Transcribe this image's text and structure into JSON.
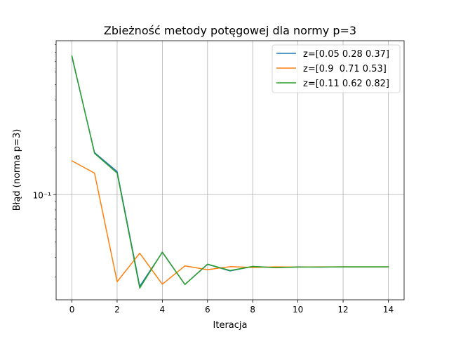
{
  "chart_data": {
    "type": "line",
    "title": "Zbieżność metody potęgowej dla normy p=3",
    "xlabel": "Iteracja",
    "ylabel": "Błąd (norma p=3)",
    "x": [
      0,
      1,
      2,
      3,
      4,
      5,
      6,
      7,
      8,
      9,
      10,
      11,
      12,
      13,
      14
    ],
    "xlim": [
      -0.7,
      14.7
    ],
    "ylim": [
      0.0215,
      0.95
    ],
    "yscale": "log",
    "x_ticks": [
      0,
      2,
      4,
      6,
      8,
      10,
      12,
      14
    ],
    "x_tick_labels": [
      "0",
      "2",
      "4",
      "6",
      "8",
      "10",
      "12",
      "14"
    ],
    "y_ticks": [
      0.1
    ],
    "y_tick_labels": [
      "10⁻¹"
    ],
    "grid": true,
    "legend_position": "upper right",
    "series": [
      {
        "name": "z=[0.05 0.28 0.37]",
        "color": "#1f77b4",
        "values": [
          0.75,
          0.185,
          0.14,
          0.0262,
          0.043,
          0.0269,
          0.0361,
          0.0328,
          0.035,
          0.0344,
          0.0348,
          0.0347,
          0.0348,
          0.0348,
          0.0348
        ]
      },
      {
        "name": "z=[0.9  0.71 0.53]",
        "color": "#ff7f0e",
        "values": [
          0.164,
          0.137,
          0.028,
          0.0425,
          0.027,
          0.0353,
          0.0334,
          0.0349,
          0.0345,
          0.0348,
          0.0347,
          0.0348,
          0.0348,
          0.0348,
          0.0348
        ]
      },
      {
        "name": "z=[0.11 0.62 0.82]",
        "color": "#2ca02c",
        "values": [
          0.76,
          0.183,
          0.137,
          0.0255,
          0.0432,
          0.0269,
          0.0362,
          0.033,
          0.035,
          0.0344,
          0.0347,
          0.0347,
          0.0348,
          0.0348,
          0.0348
        ]
      }
    ]
  }
}
